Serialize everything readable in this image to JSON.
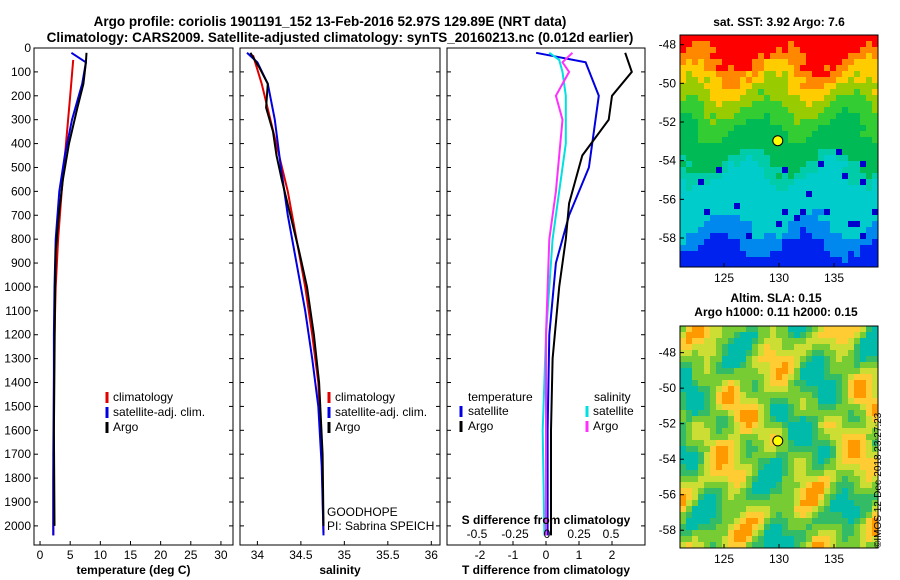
{
  "title_line1": "Argo profile: coriolis 1901191_152 13-Feb-2016 52.97S 129.89E (NRT data)",
  "title_line2": "Climatology: CARS2009. Satellite-adjusted climatology: synTS_20160213.nc (0.012d earlier)",
  "credit": "©IMOS 12-Dec-2018 23:27:23",
  "colors": {
    "climatology": "#e00000",
    "satellite": "#0000e0",
    "argo": "#000000",
    "sal_satellite": "#00e0e0",
    "sal_argo": "#ff30ff"
  },
  "chart_data": [
    {
      "type": "line",
      "name": "temperature",
      "xlabel": "temperature (deg C)",
      "xlim": [
        -1,
        32
      ],
      "ylim": [
        2080,
        0
      ],
      "xticks": [
        0,
        5,
        10,
        15,
        20,
        25,
        30
      ],
      "yticks": [
        0,
        100,
        200,
        300,
        400,
        500,
        600,
        700,
        800,
        900,
        1000,
        1100,
        1200,
        1300,
        1400,
        1500,
        1600,
        1700,
        1800,
        1900,
        2000
      ],
      "legend": [
        "climatology",
        "satellite-adj. clim.",
        "Argo"
      ],
      "series": [
        {
          "name": "climatology",
          "color": "#e00000",
          "x": [
            5.5,
            5.0,
            4.3,
            3.6,
            3.0,
            2.6,
            2.4,
            2.3,
            2.3,
            2.2,
            2.2
          ],
          "y": [
            50,
            200,
            400,
            600,
            800,
            1000,
            1200,
            1400,
            1600,
            1800,
            2040
          ]
        },
        {
          "name": "satellite-adj. clim.",
          "color": "#0000e0",
          "x": [
            5.2,
            7.6,
            7.0,
            5.3,
            4.1,
            3.2,
            2.6,
            2.4,
            2.3,
            2.3,
            2.2,
            2.2
          ],
          "y": [
            20,
            60,
            150,
            300,
            450,
            600,
            800,
            1000,
            1200,
            1400,
            1700,
            2040
          ]
        },
        {
          "name": "Argo",
          "color": "#000000",
          "x": [
            7.7,
            7.6,
            7.2,
            6.2,
            4.8,
            3.8,
            3.1,
            2.6,
            2.5,
            2.4,
            2.3,
            2.4
          ],
          "y": [
            20,
            60,
            150,
            250,
            400,
            550,
            700,
            850,
            1000,
            1300,
            1600,
            2000
          ]
        }
      ]
    },
    {
      "type": "line",
      "name": "salinity",
      "xlabel": "salinity",
      "xlim": [
        33.8,
        36.1
      ],
      "ylim": [
        2080,
        0
      ],
      "xticks": [
        34,
        34.5,
        35,
        35.5,
        36
      ],
      "legend": [
        "climatology",
        "satellite-adj. clim.",
        "Argo"
      ],
      "annotation": [
        "GOODHOPE",
        "PI: Sabrina SPEICH"
      ],
      "series": [
        {
          "name": "climatology",
          "color": "#e00000",
          "x": [
            33.95,
            34.05,
            34.15,
            34.25,
            34.35,
            34.45,
            34.55,
            34.63,
            34.7,
            34.74,
            34.76
          ],
          "y": [
            30,
            150,
            300,
            450,
            600,
            800,
            1000,
            1200,
            1400,
            1700,
            2030
          ]
        },
        {
          "name": "satellite-adj. clim.",
          "color": "#0000e0",
          "x": [
            33.88,
            34.0,
            34.12,
            34.2,
            34.27,
            34.35,
            34.45,
            34.55,
            34.63,
            34.7,
            34.74,
            34.76
          ],
          "y": [
            20,
            60,
            150,
            300,
            500,
            700,
            900,
            1100,
            1300,
            1500,
            1750,
            2040
          ]
        },
        {
          "name": "Argo",
          "color": "#000000",
          "x": [
            33.92,
            34.02,
            34.12,
            34.1,
            34.18,
            34.22,
            34.28,
            34.38,
            34.48,
            34.57,
            34.65,
            34.71,
            34.75,
            34.76
          ],
          "y": [
            20,
            80,
            150,
            250,
            350,
            450,
            550,
            700,
            850,
            1000,
            1200,
            1400,
            1700,
            2000
          ]
        }
      ]
    },
    {
      "type": "line",
      "name": "difference",
      "xlabel": "T difference from climatology",
      "xlabel_top": "S difference from climatology",
      "xlim": [
        -3,
        3
      ],
      "ylim": [
        2080,
        0
      ],
      "xticks": [
        -2,
        -1,
        0,
        1,
        2
      ],
      "xticks_top": [
        "-0.5",
        "-0.25",
        "0",
        "0.25",
        "0.5"
      ],
      "legend_left_title": "temperature",
      "legend_right_title": "salinity",
      "legend_left": [
        "satellite",
        "Argo"
      ],
      "legend_right": [
        "satellite",
        "Argo"
      ],
      "series": [
        {
          "name": "T satellite",
          "color": "#0000e0",
          "x": [
            -0.3,
            1.2,
            1.6,
            1.3,
            0.7,
            0.3,
            0.1,
            0.05,
            0.05
          ],
          "y": [
            20,
            60,
            200,
            500,
            700,
            900,
            1200,
            1600,
            2040
          ]
        },
        {
          "name": "T Argo",
          "color": "#000000",
          "x": [
            2.4,
            2.6,
            2.0,
            1.9,
            1.1,
            0.9,
            0.7,
            0.6,
            0.4,
            0.2,
            0.15,
            0.15
          ],
          "y": [
            20,
            100,
            200,
            300,
            450,
            550,
            650,
            800,
            1000,
            1300,
            1600,
            2040
          ]
        },
        {
          "name": "S satellite",
          "color": "#00e0e0",
          "x": [
            0.1,
            0.4,
            0.5,
            0.6,
            0.6,
            0.4,
            0.2,
            0.0,
            -0.1,
            -0.05
          ],
          "y": [
            20,
            50,
            100,
            200,
            400,
            600,
            800,
            1200,
            1600,
            2040
          ]
        },
        {
          "name": "S Argo",
          "color": "#ff30ff",
          "x": [
            0.8,
            0.5,
            0.7,
            0.3,
            0.5,
            0.4,
            0.3,
            0.1,
            0.0,
            0.0
          ],
          "y": [
            20,
            60,
            100,
            200,
            300,
            450,
            600,
            800,
            1200,
            2040
          ]
        }
      ]
    },
    {
      "type": "heatmap",
      "name": "sst-map",
      "title": "sat. SST: 3.92 Argo: 7.6",
      "xlim": [
        121,
        139
      ],
      "ylim": [
        -59.5,
        -47.5
      ],
      "xticks": [
        125,
        130,
        135
      ],
      "yticks": [
        -48,
        -50,
        -52,
        -54,
        -56,
        -58
      ],
      "marker": {
        "lon": 129.89,
        "lat": -52.97
      }
    },
    {
      "type": "heatmap",
      "name": "sla-map",
      "title": "Altim. SLA: 0.15",
      "title2": "Argo h1000: 0.11 h2000: 0.15",
      "xlim": [
        121,
        139
      ],
      "ylim": [
        -59,
        -46.5
      ],
      "xticks": [
        125,
        130,
        135
      ],
      "yticks": [
        -48,
        -50,
        -52,
        -54,
        -56,
        -58
      ],
      "marker": {
        "lon": 129.89,
        "lat": -52.97
      }
    }
  ]
}
